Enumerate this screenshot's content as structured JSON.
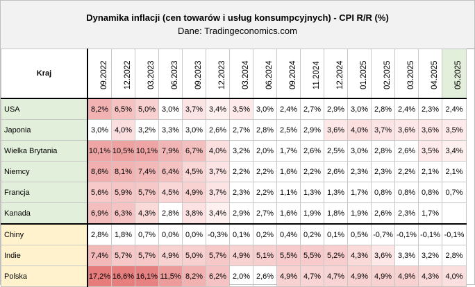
{
  "header": {
    "title": "Dynamika inflacji (cen towarów i usług konsumpcyjnych) - CPI R/R (%)",
    "subtitle": "Dane: Tradingeconomics.com"
  },
  "table": {
    "corner_label": "Kraj",
    "columns": [
      "09.2022",
      "12.2022",
      "03.2023",
      "06.2023",
      "09.2023",
      "12.2023",
      "03.2024",
      "06.2024",
      "09.2024",
      "11.2024",
      "12.2024",
      "01.2025",
      "02.2025",
      "03.2025",
      "04.2025",
      "05.2025"
    ],
    "highlight_colors": {
      "group1_country": "#e2efda",
      "group2_country": "#fff2cc",
      "last_column_header": "#e2efda",
      "heat_low": "#ffffff",
      "heat_high": "#e67c7c"
    },
    "rows": [
      {
        "country": "USA",
        "group": 1,
        "values": [
          "8,2%",
          "6,5%",
          "5,0%",
          "3,0%",
          "3,7%",
          "3,4%",
          "3,5%",
          "3,0%",
          "2,4%",
          "2,7%",
          "2,9%",
          "3,0%",
          "2,8%",
          "2,4%",
          "2,3%",
          "2,4%"
        ]
      },
      {
        "country": "Japonia",
        "group": 1,
        "values": [
          "3,0%",
          "4,0%",
          "3,2%",
          "3,3%",
          "3,0%",
          "2,6%",
          "2,7%",
          "2,8%",
          "2,5%",
          "2,9%",
          "3,6%",
          "4,0%",
          "3,7%",
          "3,6%",
          "3,6%",
          "3,5%"
        ]
      },
      {
        "country": "Wielka Brytania",
        "group": 1,
        "values": [
          "10,1%",
          "10,5%",
          "10,1%",
          "7,9%",
          "6,7%",
          "4,0%",
          "3,2%",
          "2,0%",
          "1,7%",
          "2,6%",
          "2,5%",
          "3,0%",
          "2,8%",
          "2,6%",
          "3,5%",
          "3,4%"
        ]
      },
      {
        "country": "Niemcy",
        "group": 1,
        "values": [
          "8,6%",
          "8,1%",
          "7,4%",
          "6,4%",
          "4,5%",
          "3,7%",
          "2,2%",
          "2,2%",
          "1,6%",
          "2,2%",
          "2,6%",
          "2,3%",
          "2,3%",
          "2,2%",
          "2,1%",
          "2,1%"
        ]
      },
      {
        "country": "Francja",
        "group": 1,
        "values": [
          "5,6%",
          "5,9%",
          "5,7%",
          "4,5%",
          "4,9%",
          "3,7%",
          "2,3%",
          "2,2%",
          "1,1%",
          "1,3%",
          "1,3%",
          "1,7%",
          "0,8%",
          "0,8%",
          "0,8%",
          "0,7%"
        ]
      },
      {
        "country": "Kanada",
        "group": 1,
        "values": [
          "6,9%",
          "6,3%",
          "4,3%",
          "2,8%",
          "3,8%",
          "3,4%",
          "2,9%",
          "2,7%",
          "1,6%",
          "1,9%",
          "1,8%",
          "1,9%",
          "2,6%",
          "2,3%",
          "1,7%",
          ""
        ]
      },
      {
        "country": "Chiny",
        "group": 2,
        "values": [
          "2,8%",
          "1,8%",
          "0,7%",
          "0,0%",
          "0,0%",
          "-0,3%",
          "0,1%",
          "0,2%",
          "0,4%",
          "0,2%",
          "0,1%",
          "0,5%",
          "-0,7%",
          "-0,1%",
          "-0,1%",
          "-0,1%"
        ]
      },
      {
        "country": "Indie",
        "group": 2,
        "values": [
          "7,4%",
          "5,7%",
          "5,7%",
          "4,9%",
          "5,0%",
          "5,7%",
          "4,9%",
          "5,1%",
          "5,5%",
          "5,5%",
          "5,2%",
          "4,3%",
          "3,6%",
          "3,3%",
          "3,2%",
          "2,8%"
        ]
      },
      {
        "country": "Polska",
        "group": 2,
        "values": [
          "17,2%",
          "16,6%",
          "16,1%",
          "11,5%",
          "8,2%",
          "6,2%",
          "2,0%",
          "2,6%",
          "4,9%",
          "4,7%",
          "4,7%",
          "4,9%",
          "4,9%",
          "4,9%",
          "4,3%",
          "4,0%"
        ]
      }
    ]
  }
}
